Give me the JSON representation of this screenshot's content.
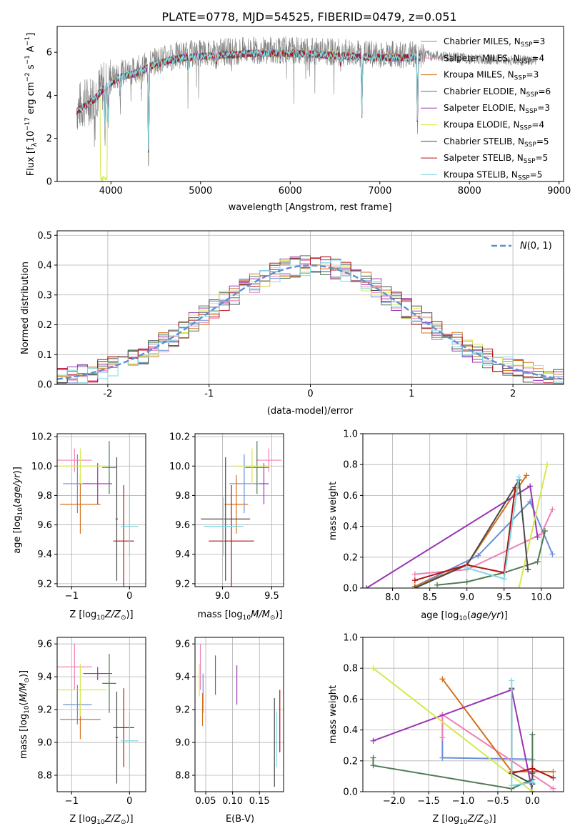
{
  "title": "PLATE=0778, MJD=54525, FIBERID=0479, z=0.051",
  "colors": {
    "Chabrier MILES": "#6a8fd8",
    "Salpeter MILES": "#f07fb8",
    "Kroupa MILES": "#d2721f",
    "Chabrier ELODIE": "#4f7a55",
    "Salpeter ELODIE": "#9a35b5",
    "Kroupa ELODIE": "#d6e84d",
    "Chabrier STELIB": "#4a4a4a",
    "Salpeter STELIB": "#b51313",
    "Kroupa STELIB": "#7fd8e0",
    "grid": "#b0b0b0",
    "data": "#808080"
  },
  "legend_spectrum": [
    {
      "model": "Chabrier MILES",
      "label": "Chabrier MILES, N",
      "sub": "SSP",
      "suffix": "=3"
    },
    {
      "model": "Salpeter MILES",
      "label": "Salpeter MILES, N",
      "sub": "SSP",
      "suffix": "=4"
    },
    {
      "model": "Kroupa MILES",
      "label": "Kroupa MILES, N",
      "sub": "SSP",
      "suffix": "=3"
    },
    {
      "model": "Chabrier ELODIE",
      "label": "Chabrier ELODIE, N",
      "sub": "SSP",
      "suffix": "=6"
    },
    {
      "model": "Salpeter ELODIE",
      "label": "Salpeter ELODIE, N",
      "sub": "SSP",
      "suffix": "=3"
    },
    {
      "model": "Kroupa ELODIE",
      "label": "Kroupa ELODIE, N",
      "sub": "SSP",
      "suffix": "=4"
    },
    {
      "model": "Chabrier STELIB",
      "label": "Chabrier STELIB, N",
      "sub": "SSP",
      "suffix": "=5"
    },
    {
      "model": "Salpeter STELIB",
      "label": "Salpeter STELIB, N",
      "sub": "SSP",
      "suffix": "=5"
    },
    {
      "model": "Kroupa STELIB",
      "label": "Kroupa STELIB, N",
      "sub": "SSP",
      "suffix": "=5"
    }
  ],
  "chart_data": [
    {
      "id": "spectrum",
      "type": "line",
      "xlabel": "wavelength [Angstrom, rest frame]",
      "ylabel": "Flux [f",
      "xlim": [
        3400,
        9050
      ],
      "ylim": [
        0,
        7.2
      ],
      "xticks": [
        4000,
        5000,
        6000,
        7000,
        8000,
        9000
      ],
      "yticks": [
        0,
        2,
        4,
        6
      ],
      "data_range": [
        3620,
        8750
      ],
      "model_range": [
        3620,
        7450
      ],
      "continuum_points": [
        [
          3620,
          3.4
        ],
        [
          3800,
          3.9
        ],
        [
          3950,
          4.6
        ],
        [
          4100,
          5.0
        ],
        [
          4300,
          5.2
        ],
        [
          4500,
          5.6
        ],
        [
          4800,
          5.9
        ],
        [
          5200,
          6.0
        ],
        [
          5600,
          6.1
        ],
        [
          6000,
          6.1
        ],
        [
          6500,
          6.0
        ],
        [
          7000,
          5.9
        ],
        [
          7450,
          5.9
        ],
        [
          8000,
          5.7
        ],
        [
          8750,
          5.6
        ]
      ],
      "absorption": [
        [
          3935,
          2.4
        ],
        [
          3970,
          2.0
        ],
        [
          4100,
          0.8
        ],
        [
          4340,
          0.9
        ],
        [
          4420,
          4.8
        ],
        [
          4861,
          0.6
        ],
        [
          5175,
          0.5
        ],
        [
          5890,
          0.4
        ],
        [
          6563,
          0.5
        ],
        [
          6800,
          3.0
        ],
        [
          7420,
          3.5
        ]
      ]
    },
    {
      "id": "residuals",
      "type": "histogram",
      "xlabel": "(data-model)/error",
      "ylabel": "Normed distribution",
      "xlim": [
        -2.5,
        2.5
      ],
      "ylim": [
        0,
        0.515
      ],
      "xticks": [
        -2,
        -1,
        0,
        1,
        2
      ],
      "yticks": [
        0.0,
        0.1,
        0.2,
        0.3,
        0.4,
        0.5
      ],
      "bin_width": 0.1,
      "reference": {
        "name": "N(0,1)",
        "type": "gaussian",
        "mu": 0,
        "sigma": 1
      }
    },
    {
      "id": "age_vs_Z",
      "type": "scatter",
      "xlabel": "Z [log",
      "ylabel": "age  [log",
      "xlim": [
        -1.25,
        0.28
      ],
      "ylim": [
        9.18,
        10.22
      ],
      "xticks": [
        -1,
        0
      ],
      "yticks": [
        9.2,
        9.4,
        9.6,
        9.8,
        10.0,
        10.2
      ],
      "points": [
        {
          "model": "Chabrier MILES",
          "x": -0.9,
          "xerr": 0.25,
          "y": 9.88,
          "yerr": 0.2
        },
        {
          "model": "Salpeter MILES",
          "x": -0.95,
          "xerr": 0.3,
          "y": 10.04,
          "yerr": 0.08
        },
        {
          "model": "Kroupa MILES",
          "x": -0.85,
          "xerr": 0.35,
          "y": 9.74,
          "yerr": 0.2
        },
        {
          "model": "Chabrier ELODIE",
          "x": -0.35,
          "xerr": 0.12,
          "y": 9.99,
          "yerr": 0.18
        },
        {
          "model": "Salpeter ELODIE",
          "x": -0.55,
          "xerr": 0.25,
          "y": 9.88,
          "yerr": 0.14
        },
        {
          "model": "Kroupa ELODIE",
          "x": -0.85,
          "xerr": 0.45,
          "y": 10.0,
          "yerr": 0.12
        },
        {
          "model": "Chabrier STELIB",
          "x": -0.22,
          "xerr": 0.02,
          "y": 9.64,
          "yerr": 0.42
        },
        {
          "model": "Salpeter STELIB",
          "x": -0.1,
          "xerr": 0.18,
          "y": 9.49,
          "yerr": 0.38
        },
        {
          "model": "Kroupa STELIB",
          "x": 0.0,
          "xerr": 0.15,
          "y": 9.59,
          "yerr": 0.2
        }
      ]
    },
    {
      "id": "age_vs_mass",
      "type": "scatter",
      "xlabel": "mass [log",
      "ylabel": "",
      "xlim": [
        8.72,
        9.62
      ],
      "ylim": [
        9.18,
        10.22
      ],
      "xticks": [
        9.0,
        9.5
      ],
      "yticks": [
        9.2,
        9.4,
        9.6,
        9.8,
        10.0,
        10.2
      ],
      "points": [
        {
          "model": "Chabrier MILES",
          "x": 9.22,
          "xerr": 0.15,
          "y": 9.88,
          "yerr": 0.2
        },
        {
          "model": "Salpeter MILES",
          "x": 9.47,
          "xerr": 0.13,
          "y": 10.04,
          "yerr": 0.08
        },
        {
          "model": "Kroupa MILES",
          "x": 9.14,
          "xerr": 0.12,
          "y": 9.74,
          "yerr": 0.2
        },
        {
          "model": "Chabrier ELODIE",
          "x": 9.35,
          "xerr": 0.12,
          "y": 9.99,
          "yerr": 0.18
        },
        {
          "model": "Salpeter ELODIE",
          "x": 9.42,
          "xerr": 0.05,
          "y": 9.88,
          "yerr": 0.14
        },
        {
          "model": "Kroupa ELODIE",
          "x": 9.3,
          "xerr": 0.18,
          "y": 10.0,
          "yerr": 0.12
        },
        {
          "model": "Chabrier STELIB",
          "x": 9.03,
          "xerr": 0.25,
          "y": 9.64,
          "yerr": 0.42
        },
        {
          "model": "Salpeter STELIB",
          "x": 9.09,
          "xerr": 0.23,
          "y": 9.49,
          "yerr": 0.38
        },
        {
          "model": "Kroupa STELIB",
          "x": 9.01,
          "xerr": 0.2,
          "y": 9.59,
          "yerr": 0.2
        }
      ]
    },
    {
      "id": "weight_vs_age",
      "type": "line",
      "xlabel": "age  [log",
      "ylabel": "mass weight",
      "xlim": [
        7.6,
        10.3
      ],
      "ylim": [
        0,
        1.0
      ],
      "xticks": [
        8.0,
        8.5,
        9.0,
        9.5,
        10.0
      ],
      "yticks": [
        0.0,
        0.2,
        0.4,
        0.6,
        0.8,
        1.0
      ],
      "series": [
        {
          "model": "Chabrier MILES",
          "x": [
            8.3,
            9.15,
            9.85,
            10.15
          ],
          "y": [
            0.01,
            0.21,
            0.56,
            0.22
          ]
        },
        {
          "model": "Salpeter MILES",
          "x": [
            8.3,
            9.0,
            10.0,
            10.15
          ],
          "y": [
            0.09,
            0.12,
            0.35,
            0.51
          ]
        },
        {
          "model": "Kroupa MILES",
          "x": [
            8.3,
            9.0,
            9.8
          ],
          "y": [
            0.01,
            0.15,
            0.73
          ]
        },
        {
          "model": "Chabrier ELODIE",
          "x": [
            8.6,
            9.0,
            9.5,
            9.95,
            10.05
          ],
          "y": [
            0.02,
            0.04,
            0.1,
            0.17,
            0.37
          ]
        },
        {
          "model": "Salpeter ELODIE",
          "x": [
            7.65,
            9.85,
            9.95
          ],
          "y": [
            0.0,
            0.66,
            0.33
          ]
        },
        {
          "model": "Kroupa ELODIE",
          "x": [
            8.5,
            9.7,
            10.08
          ],
          "y": [
            0.0,
            0.0,
            0.8
          ]
        },
        {
          "model": "Chabrier STELIB",
          "x": [
            8.3,
            9.0,
            9.7,
            9.82
          ],
          "y": [
            0.0,
            0.15,
            0.7,
            0.12
          ]
        },
        {
          "model": "Salpeter STELIB",
          "x": [
            8.3,
            9.0,
            9.5,
            9.65
          ],
          "y": [
            0.05,
            0.15,
            0.1,
            0.65
          ]
        },
        {
          "model": "Kroupa STELIB",
          "x": [
            9.0,
            9.5,
            9.7
          ],
          "y": [
            0.13,
            0.06,
            0.72
          ]
        }
      ]
    },
    {
      "id": "mass_vs_Z",
      "type": "scatter",
      "xlabel": "Z [log",
      "ylabel": "mass [log",
      "xlim": [
        -1.25,
        0.28
      ],
      "ylim": [
        8.7,
        9.64
      ],
      "xticks": [
        -1,
        0
      ],
      "yticks": [
        8.8,
        9.0,
        9.2,
        9.4,
        9.6
      ],
      "points": [
        {
          "model": "Chabrier MILES",
          "x": -0.9,
          "xerr": 0.25,
          "y": 9.23,
          "yerr": 0.12
        },
        {
          "model": "Salpeter MILES",
          "x": -0.95,
          "xerr": 0.3,
          "y": 9.46,
          "yerr": 0.14
        },
        {
          "model": "Kroupa MILES",
          "x": -0.85,
          "xerr": 0.35,
          "y": 9.14,
          "yerr": 0.12
        },
        {
          "model": "Chabrier ELODIE",
          "x": -0.35,
          "xerr": 0.12,
          "y": 9.36,
          "yerr": 0.18
        },
        {
          "model": "Salpeter ELODIE",
          "x": -0.55,
          "xerr": 0.25,
          "y": 9.42,
          "yerr": 0.04
        },
        {
          "model": "Kroupa ELODIE",
          "x": -0.85,
          "xerr": 0.45,
          "y": 9.32,
          "yerr": 0.16
        },
        {
          "model": "Chabrier STELIB",
          "x": -0.22,
          "xerr": 0.02,
          "y": 9.03,
          "yerr": 0.28
        },
        {
          "model": "Salpeter STELIB",
          "x": -0.1,
          "xerr": 0.18,
          "y": 9.09,
          "yerr": 0.24
        },
        {
          "model": "Kroupa STELIB",
          "x": 0.0,
          "xerr": 0.15,
          "y": 9.01,
          "yerr": 0.17
        }
      ]
    },
    {
      "id": "mass_vs_ebv",
      "type": "scatter",
      "xlabel": "E(B-V)",
      "ylabel": "",
      "xlim": [
        0.03,
        0.195
      ],
      "ylim": [
        8.7,
        9.64
      ],
      "xticks": [
        0.05,
        0.1,
        0.15
      ],
      "yticks": [
        8.8,
        9.0,
        9.2,
        9.4,
        9.6
      ],
      "points": [
        {
          "model": "Chabrier MILES",
          "x": 0.045,
          "y": 9.3,
          "yerr": 0.12
        },
        {
          "model": "Salpeter MILES",
          "x": 0.04,
          "y": 9.46,
          "yerr": 0.14
        },
        {
          "model": "Kroupa MILES",
          "x": 0.044,
          "y": 9.2,
          "yerr": 0.1
        },
        {
          "model": "Chabrier ELODIE",
          "x": 0.068,
          "y": 9.41,
          "yerr": 0.12
        },
        {
          "model": "Salpeter ELODIE",
          "x": 0.108,
          "y": 9.35,
          "yerr": 0.12
        },
        {
          "model": "Kroupa ELODIE",
          "x": 0.038,
          "y": 9.38,
          "yerr": 0.1
        },
        {
          "model": "Chabrier STELIB",
          "x": 0.178,
          "y": 9.0,
          "yerr": 0.27
        },
        {
          "model": "Salpeter STELIB",
          "x": 0.188,
          "y": 9.13,
          "yerr": 0.19
        },
        {
          "model": "Kroupa STELIB",
          "x": 0.182,
          "y": 9.02,
          "yerr": 0.17
        }
      ]
    },
    {
      "id": "weight_vs_Z",
      "type": "line",
      "xlabel": "Z [log",
      "ylabel": "mass weight",
      "xlim": [
        -2.45,
        0.45
      ],
      "ylim": [
        0,
        1.0
      ],
      "xticks": [
        -2.0,
        -1.5,
        -1.0,
        -0.5,
        0.0
      ],
      "yticks": [
        0.0,
        0.2,
        0.4,
        0.6,
        0.8,
        1.0
      ],
      "series": [
        {
          "model": "Chabrier MILES",
          "x": [
            -1.3,
            -1.3,
            0.0,
            0.0
          ],
          "y": [
            0.5,
            0.22,
            0.21,
            0.05
          ]
        },
        {
          "model": "Salpeter MILES",
          "x": [
            -1.3,
            -1.3,
            0.3
          ],
          "y": [
            0.35,
            0.5,
            0.02
          ]
        },
        {
          "model": "Kroupa MILES",
          "x": [
            -1.3,
            -0.3,
            0.3
          ],
          "y": [
            0.73,
            0.13,
            0.13
          ]
        },
        {
          "model": "Chabrier ELODIE",
          "x": [
            -2.3,
            -2.3,
            -0.3,
            0.0,
            0.0
          ],
          "y": [
            0.22,
            0.17,
            0.02,
            0.08,
            0.37
          ]
        },
        {
          "model": "Salpeter ELODIE",
          "x": [
            -2.3,
            -0.3,
            0.0
          ],
          "y": [
            0.33,
            0.66,
            0.0
          ]
        },
        {
          "model": "Kroupa ELODIE",
          "x": [
            -2.3,
            0.0,
            0.0
          ],
          "y": [
            0.8,
            0.0,
            0.0
          ]
        },
        {
          "model": "Chabrier STELIB",
          "x": [
            -0.3,
            -0.3,
            0.0,
            0.0
          ],
          "y": [
            0.67,
            0.12,
            0.05,
            0.12
          ]
        },
        {
          "model": "Salpeter STELIB",
          "x": [
            -0.3,
            0.0,
            0.3
          ],
          "y": [
            0.12,
            0.15,
            0.09
          ]
        },
        {
          "model": "Kroupa STELIB",
          "x": [
            -0.3,
            -0.3,
            0.0
          ],
          "y": [
            0.72,
            0.04,
            0.06
          ]
        }
      ]
    }
  ]
}
